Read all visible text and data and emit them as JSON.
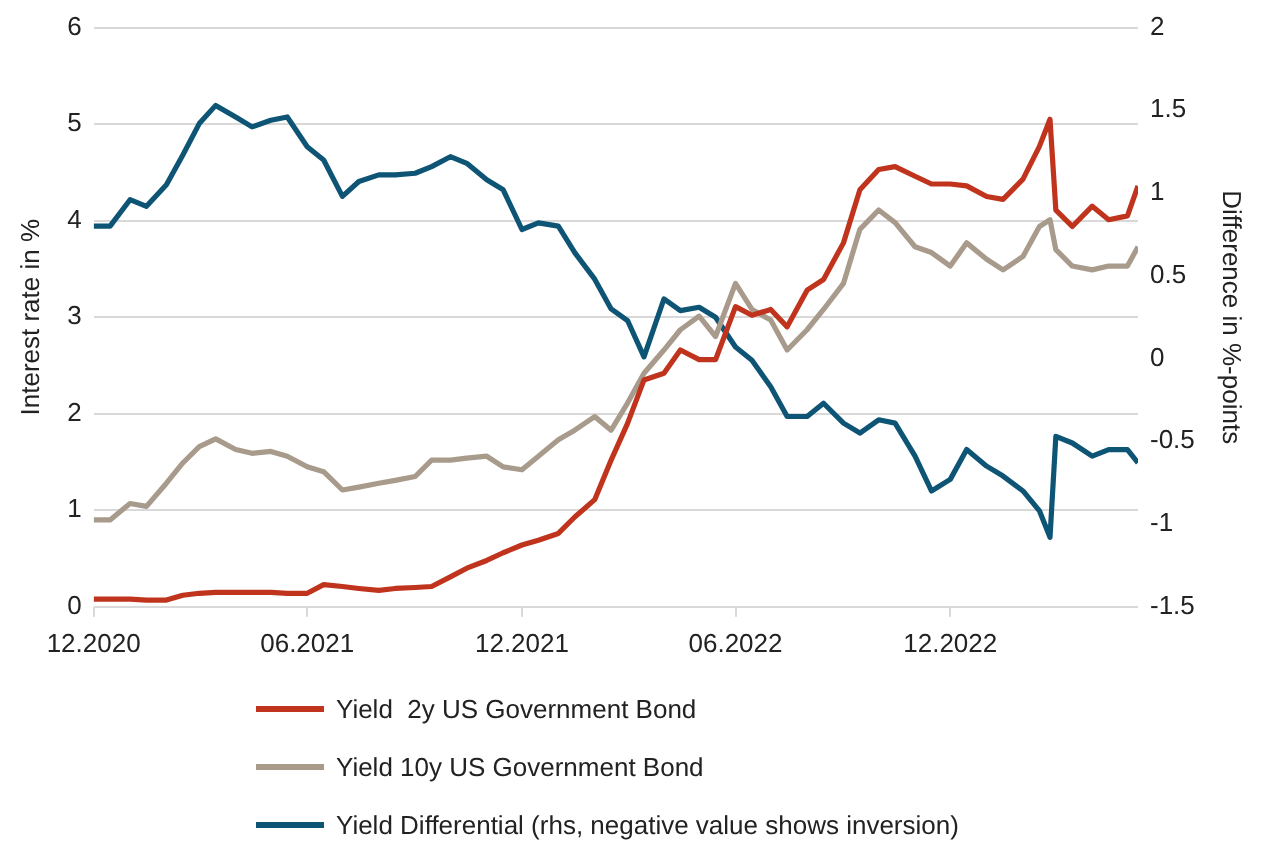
{
  "chart_data": {
    "type": "line",
    "ylabel": "Interest rate in %",
    "y2label": "Difference in %-points",
    "x": [
      "2020-12-01",
      "2020-12-15",
      "2021-01-01",
      "2021-01-15",
      "2021-02-01",
      "2021-02-15",
      "2021-03-01",
      "2021-03-15",
      "2021-04-01",
      "2021-04-15",
      "2021-05-01",
      "2021-05-15",
      "2021-06-01",
      "2021-06-15",
      "2021-07-01",
      "2021-07-15",
      "2021-08-01",
      "2021-08-15",
      "2021-09-01",
      "2021-09-15",
      "2021-10-01",
      "2021-10-15",
      "2021-11-01",
      "2021-11-15",
      "2021-12-01",
      "2021-12-15",
      "2022-01-01",
      "2022-01-15",
      "2022-02-01",
      "2022-02-15",
      "2022-03-01",
      "2022-03-15",
      "2022-04-01",
      "2022-04-15",
      "2022-05-01",
      "2022-05-15",
      "2022-06-01",
      "2022-06-15",
      "2022-07-01",
      "2022-07-15",
      "2022-08-01",
      "2022-08-15",
      "2022-09-01",
      "2022-09-15",
      "2022-10-01",
      "2022-10-15",
      "2022-11-01",
      "2022-11-15",
      "2022-12-01",
      "2022-12-15",
      "2023-01-01",
      "2023-01-15",
      "2023-02-01",
      "2023-02-15",
      "2023-02-24",
      "2023-03-01",
      "2023-03-15",
      "2023-04-01",
      "2023-04-15",
      "2023-05-01",
      "2023-05-10"
    ],
    "series": [
      {
        "name": "Yield  2y US Government Bond",
        "color": "#c0341d",
        "values": [
          0.08,
          0.08,
          0.08,
          0.07,
          0.07,
          0.12,
          0.14,
          0.15,
          0.15,
          0.15,
          0.15,
          0.14,
          0.14,
          0.23,
          0.21,
          0.19,
          0.17,
          0.19,
          0.2,
          0.21,
          0.31,
          0.4,
          0.48,
          0.56,
          0.64,
          0.69,
          0.76,
          0.93,
          1.11,
          1.52,
          1.9,
          2.35,
          2.42,
          2.66,
          2.56,
          2.56,
          3.11,
          3.02,
          3.08,
          2.9,
          3.28,
          3.39,
          3.77,
          4.32,
          4.53,
          4.56,
          4.46,
          4.38,
          4.38,
          4.36,
          4.25,
          4.22,
          4.43,
          4.77,
          5.05,
          4.11,
          3.94,
          4.15,
          4.01,
          4.05,
          4.36
        ]
      },
      {
        "name": "Yield 10y US Government Bond",
        "color": "#a89b8c",
        "values": [
          0.9,
          0.9,
          1.07,
          1.04,
          1.28,
          1.49,
          1.66,
          1.74,
          1.63,
          1.59,
          1.61,
          1.56,
          1.45,
          1.4,
          1.21,
          1.24,
          1.28,
          1.31,
          1.35,
          1.52,
          1.52,
          1.54,
          1.56,
          1.45,
          1.42,
          1.56,
          1.73,
          1.83,
          1.97,
          1.83,
          2.11,
          2.42,
          2.66,
          2.87,
          3.01,
          2.8,
          3.35,
          3.08,
          2.97,
          2.66,
          2.87,
          3.08,
          3.35,
          3.91,
          4.11,
          3.98,
          3.73,
          3.67,
          3.53,
          3.77,
          3.6,
          3.49,
          3.63,
          3.94,
          4.01,
          3.7,
          3.53,
          3.49,
          3.53,
          3.53,
          3.73
        ]
      },
      {
        "name": "Yield Differential (rhs, negative value shows inversion)",
        "color": "#0e5475",
        "axis": "y2",
        "values": [
          0.8,
          0.8,
          0.96,
          0.92,
          1.05,
          1.23,
          1.42,
          1.53,
          1.46,
          1.4,
          1.44,
          1.46,
          1.28,
          1.2,
          0.98,
          1.07,
          1.11,
          1.11,
          1.12,
          1.16,
          1.22,
          1.18,
          1.08,
          1.02,
          0.78,
          0.82,
          0.8,
          0.64,
          0.48,
          0.3,
          0.23,
          0.01,
          0.36,
          0.29,
          0.31,
          0.25,
          0.07,
          -0.01,
          -0.17,
          -0.35,
          -0.35,
          -0.27,
          -0.39,
          -0.45,
          -0.37,
          -0.39,
          -0.59,
          -0.8,
          -0.73,
          -0.55,
          -0.65,
          -0.71,
          -0.8,
          -0.92,
          -1.08,
          -0.47,
          -0.51,
          -0.59,
          -0.55,
          -0.55,
          -0.63
        ]
      }
    ],
    "xlim": [
      "2020-12-01",
      "2023-05-10"
    ],
    "xticks": [
      {
        "value": "2020-12-01",
        "label": "12.2020"
      },
      {
        "value": "2021-06-01",
        "label": "06.2021"
      },
      {
        "value": "2021-12-01",
        "label": "12.2021"
      },
      {
        "value": "2022-06-01",
        "label": "06.2022"
      },
      {
        "value": "2022-12-01",
        "label": "12.2022"
      }
    ],
    "ylim": [
      0,
      6
    ],
    "yticks": [
      0,
      1,
      2,
      3,
      4,
      5,
      6
    ],
    "y2lim": [
      -1.5,
      2
    ],
    "y2ticks": [
      -1.5,
      -1,
      -0.5,
      0,
      0.5,
      1,
      1.5,
      2
    ],
    "grid": "y",
    "legend": "bottom",
    "marker": "none",
    "line_style": "solid"
  }
}
